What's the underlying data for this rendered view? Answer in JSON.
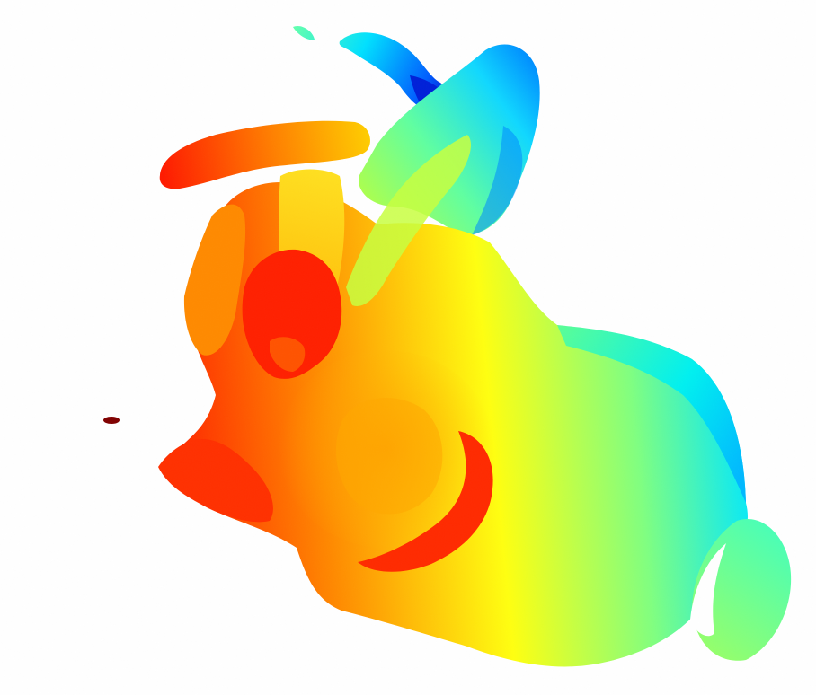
{
  "image": {
    "subject": "pointcloud-depth-rendering",
    "colormap": "jet",
    "background": "#ffffff"
  },
  "colors": {
    "near": "#ff1e00",
    "mid_near": "#ff8a00",
    "mid": "#ffff10",
    "mid_far": "#78ff88",
    "far": "#00e8ff",
    "farthest": "#0010d0",
    "outlier": "#800000"
  }
}
